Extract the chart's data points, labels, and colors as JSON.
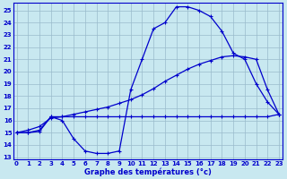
{
  "xlabel": "Graphe des températures (°c)",
  "bg_color": "#c8e8f0",
  "line_color": "#0000cc",
  "grid_color": "#99bbcc",
  "x_ticks": [
    0,
    1,
    2,
    3,
    4,
    5,
    6,
    7,
    8,
    9,
    10,
    11,
    12,
    13,
    14,
    15,
    16,
    17,
    18,
    19,
    20,
    21,
    22,
    23
  ],
  "y_ticks": [
    13,
    14,
    15,
    16,
    17,
    18,
    19,
    20,
    21,
    22,
    23,
    24,
    25
  ],
  "ylim": [
    12.8,
    25.6
  ],
  "xlim": [
    -0.3,
    23.3
  ],
  "series1_x": [
    0,
    1,
    2,
    3,
    4,
    5,
    6,
    7,
    8,
    9,
    10,
    11,
    12,
    13,
    14,
    15,
    16,
    17,
    18,
    19,
    20,
    21,
    22,
    23
  ],
  "series1_y": [
    15.0,
    15.0,
    15.1,
    16.3,
    16.0,
    14.5,
    13.5,
    13.3,
    13.3,
    13.5,
    18.5,
    21.0,
    23.5,
    24.0,
    25.3,
    25.3,
    25.0,
    24.5,
    23.3,
    21.5,
    21.0,
    19.0,
    17.5,
    16.5
  ],
  "series2_x": [
    0,
    1,
    2,
    3,
    4,
    5,
    6,
    7,
    8,
    9,
    10,
    11,
    12,
    13,
    14,
    15,
    16,
    17,
    18,
    19,
    20,
    21,
    22,
    23
  ],
  "series2_y": [
    15.0,
    15.0,
    15.2,
    16.3,
    16.3,
    16.3,
    16.3,
    16.3,
    16.3,
    16.3,
    16.3,
    16.3,
    16.3,
    16.3,
    16.3,
    16.3,
    16.3,
    16.3,
    16.3,
    16.3,
    16.3,
    16.3,
    16.3,
    16.5
  ],
  "series3_x": [
    0,
    1,
    2,
    3,
    4,
    5,
    6,
    7,
    8,
    9,
    10,
    11,
    12,
    13,
    14,
    15,
    16,
    17,
    18,
    19,
    20,
    21,
    22,
    23
  ],
  "series3_y": [
    15.0,
    15.2,
    15.5,
    16.2,
    16.3,
    16.5,
    16.7,
    16.9,
    17.1,
    17.4,
    17.7,
    18.1,
    18.6,
    19.2,
    19.7,
    20.2,
    20.6,
    20.9,
    21.2,
    21.3,
    21.2,
    21.0,
    18.5,
    16.5
  ]
}
